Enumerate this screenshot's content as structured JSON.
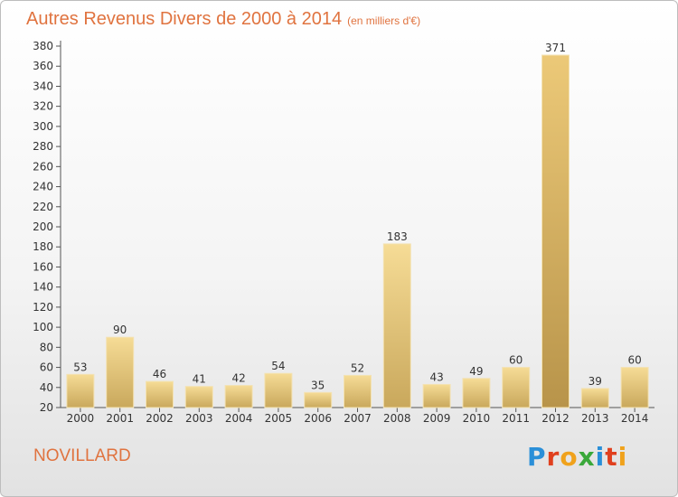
{
  "title": "Autres Revenus Divers de 2000 à 2014",
  "subtitle": "(en milliers d'€)",
  "town": "NOVILLARD",
  "logo": {
    "letters": [
      "P",
      "r",
      "o",
      "x",
      "i",
      "t",
      "i"
    ],
    "colors": [
      "#2a8fd8",
      "#e0401e",
      "#f0a21c",
      "#3aa83a",
      "#2a8fd8",
      "#e0401e",
      "#f0a21c"
    ]
  },
  "chart_data": {
    "type": "bar",
    "categories": [
      "2000",
      "2001",
      "2002",
      "2003",
      "2004",
      "2005",
      "2006",
      "2007",
      "2008",
      "2009",
      "2010",
      "2011",
      "2012",
      "2013",
      "2014"
    ],
    "values": [
      53,
      90,
      46,
      41,
      42,
      54,
      35,
      52,
      183,
      43,
      49,
      60,
      371,
      39,
      60
    ],
    "ylim": [
      20,
      380
    ],
    "ytick_step": 20,
    "grid": false,
    "bar_color": "#e8c87a"
  }
}
